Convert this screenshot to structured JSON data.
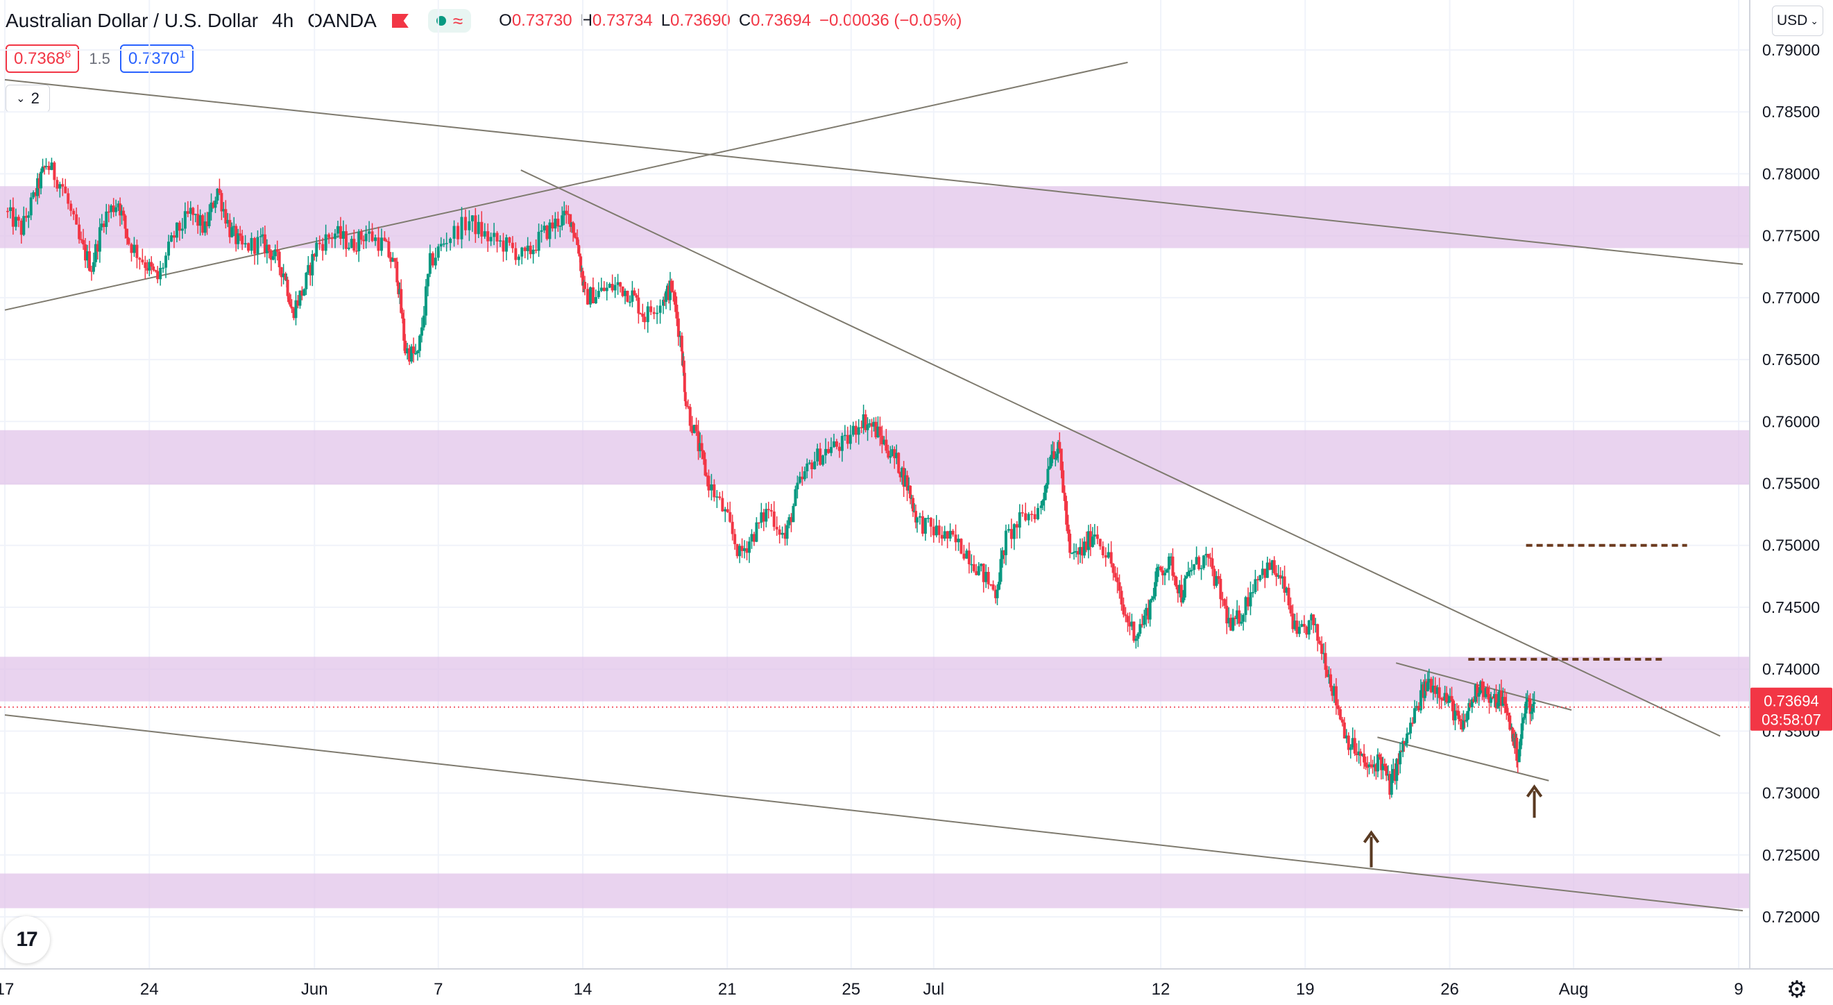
{
  "header": {
    "symbol_name": "Australian Dollar / U.S. Dollar",
    "interval": "4h",
    "broker": "OANDA",
    "ohlc": {
      "o_label": "O",
      "o_value": "0.73730",
      "h_label": "H",
      "h_value": "0.73734",
      "l_label": "L",
      "l_value": "0.73690",
      "c_label": "C",
      "c_value": "0.73694",
      "change": "−0.00036 (−0.05%)"
    }
  },
  "trade": {
    "sell_main": "0.7368",
    "sell_sup": "6",
    "spread": "1.5",
    "buy_main": "0.7370",
    "buy_sup": "1"
  },
  "collapse_count": "2",
  "currency_select": "USD",
  "logo_text": "17",
  "colors": {
    "up": "#089981",
    "down": "#f23645",
    "zone": "#e1c4e9",
    "trendline": "#7e7a6e",
    "level_dash": "#6b3a1e",
    "arrow": "#5a3a22",
    "price_label_bg": "#f23645"
  },
  "chart_data": {
    "type": "candlestick",
    "title": "Australian Dollar / U.S. Dollar, 4h, OANDA",
    "y_ticks": [
      "0.79000",
      "0.78500",
      "0.78000",
      "0.77500",
      "0.77000",
      "0.76500",
      "0.76000",
      "0.75500",
      "0.75000",
      "0.74500",
      "0.74000",
      "0.73500",
      "0.73000",
      "0.72500",
      "0.72000"
    ],
    "ylim": [
      0.7165,
      0.7918
    ],
    "x_ticks": [
      {
        "label": "17",
        "day": 0
      },
      {
        "label": "24",
        "day": 7
      },
      {
        "label": "Jun",
        "day": 15
      },
      {
        "label": "7",
        "day": 21
      },
      {
        "label": "14",
        "day": 28
      },
      {
        "label": "21",
        "day": 35
      },
      {
        "label": "25",
        "day": 41
      },
      {
        "label": "Jul",
        "day": 45
      },
      {
        "label": "12",
        "day": 56
      },
      {
        "label": "19",
        "day": 63
      },
      {
        "label": "26",
        "day": 70
      },
      {
        "label": "Aug",
        "day": 76
      },
      {
        "label": "9",
        "day": 84
      }
    ],
    "x_range_days": [
      0,
      84.2
    ],
    "last_price": "0.73694",
    "countdown": "03:58:07",
    "last_price_value": 0.73694,
    "anchors": [
      [
        0.0,
        0.777
      ],
      [
        0.8,
        0.7755
      ],
      [
        1.5,
        0.7785
      ],
      [
        2.0,
        0.7808
      ],
      [
        2.8,
        0.779
      ],
      [
        3.6,
        0.7745
      ],
      [
        4.2,
        0.7725
      ],
      [
        4.8,
        0.7765
      ],
      [
        5.5,
        0.7778
      ],
      [
        6.0,
        0.7745
      ],
      [
        6.8,
        0.7728
      ],
      [
        7.4,
        0.7715
      ],
      [
        8.2,
        0.775
      ],
      [
        9.0,
        0.7768
      ],
      [
        9.7,
        0.7755
      ],
      [
        10.3,
        0.7788
      ],
      [
        10.9,
        0.7755
      ],
      [
        11.5,
        0.774
      ],
      [
        12.4,
        0.7745
      ],
      [
        13.0,
        0.7735
      ],
      [
        13.6,
        0.7718
      ],
      [
        13.9,
        0.7688
      ],
      [
        14.5,
        0.7708
      ],
      [
        15.1,
        0.7742
      ],
      [
        16.0,
        0.7752
      ],
      [
        16.8,
        0.7742
      ],
      [
        17.5,
        0.7752
      ],
      [
        18.4,
        0.7742
      ],
      [
        19.0,
        0.772
      ],
      [
        19.4,
        0.7658
      ],
      [
        20.0,
        0.7652
      ],
      [
        20.6,
        0.7728
      ],
      [
        21.4,
        0.7748
      ],
      [
        22.5,
        0.7762
      ],
      [
        23.4,
        0.7748
      ],
      [
        24.3,
        0.7742
      ],
      [
        25.2,
        0.7732
      ],
      [
        26.0,
        0.775
      ],
      [
        26.8,
        0.7762
      ],
      [
        27.4,
        0.7765
      ],
      [
        27.8,
        0.774
      ],
      [
        28.1,
        0.77
      ],
      [
        28.9,
        0.7705
      ],
      [
        29.7,
        0.771
      ],
      [
        30.4,
        0.7702
      ],
      [
        31.0,
        0.7685
      ],
      [
        31.9,
        0.77
      ],
      [
        32.3,
        0.7708
      ],
      [
        32.8,
        0.766
      ],
      [
        33.0,
        0.7615
      ],
      [
        33.6,
        0.758
      ],
      [
        34.1,
        0.755
      ],
      [
        34.9,
        0.7525
      ],
      [
        35.6,
        0.7492
      ],
      [
        36.3,
        0.751
      ],
      [
        37.0,
        0.753
      ],
      [
        37.8,
        0.7505
      ],
      [
        38.4,
        0.7545
      ],
      [
        39.1,
        0.7568
      ],
      [
        39.9,
        0.7578
      ],
      [
        40.7,
        0.7582
      ],
      [
        41.5,
        0.7602
      ],
      [
        42.1,
        0.7595
      ],
      [
        42.7,
        0.758
      ],
      [
        43.3,
        0.7565
      ],
      [
        43.8,
        0.7545
      ],
      [
        44.2,
        0.752
      ],
      [
        45.0,
        0.7512
      ],
      [
        45.8,
        0.7505
      ],
      [
        46.6,
        0.7495
      ],
      [
        47.3,
        0.7478
      ],
      [
        48.0,
        0.7462
      ],
      [
        48.5,
        0.7505
      ],
      [
        49.3,
        0.7522
      ],
      [
        50.2,
        0.753
      ],
      [
        50.7,
        0.7578
      ],
      [
        51.1,
        0.7575
      ],
      [
        51.6,
        0.749
      ],
      [
        52.2,
        0.7495
      ],
      [
        52.8,
        0.7512
      ],
      [
        53.6,
        0.7485
      ],
      [
        54.2,
        0.7445
      ],
      [
        54.8,
        0.7428
      ],
      [
        55.4,
        0.7448
      ],
      [
        55.9,
        0.748
      ],
      [
        56.5,
        0.7485
      ],
      [
        57.0,
        0.746
      ],
      [
        57.5,
        0.7482
      ],
      [
        58.2,
        0.749
      ],
      [
        58.8,
        0.7465
      ],
      [
        59.4,
        0.7432
      ],
      [
        60.0,
        0.7448
      ],
      [
        60.7,
        0.7478
      ],
      [
        61.4,
        0.7482
      ],
      [
        62.0,
        0.7465
      ],
      [
        62.6,
        0.7425
      ],
      [
        63.3,
        0.7438
      ],
      [
        63.9,
        0.7412
      ],
      [
        64.4,
        0.738
      ],
      [
        65.0,
        0.7345
      ],
      [
        65.6,
        0.733
      ],
      [
        66.1,
        0.7318
      ],
      [
        66.6,
        0.7328
      ],
      [
        67.1,
        0.7305
      ],
      [
        67.6,
        0.733
      ],
      [
        68.0,
        0.7348
      ],
      [
        68.6,
        0.7378
      ],
      [
        69.0,
        0.739
      ],
      [
        69.6,
        0.7382
      ],
      [
        70.1,
        0.737
      ],
      [
        70.6,
        0.735
      ],
      [
        71.0,
        0.7372
      ],
      [
        71.5,
        0.739
      ],
      [
        72.0,
        0.7372
      ],
      [
        72.5,
        0.7378
      ],
      [
        73.0,
        0.735
      ],
      [
        73.3,
        0.733
      ],
      [
        73.7,
        0.7373
      ],
      [
        74.1,
        0.7369
      ]
    ],
    "zones": [
      {
        "top": 0.779,
        "bottom": 0.774
      },
      {
        "top": 0.7593,
        "bottom": 0.7549
      },
      {
        "top": 0.741,
        "bottom": 0.7374
      },
      {
        "top": 0.7235,
        "bottom": 0.7207
      }
    ],
    "trendlines": [
      {
        "x1": 0.0,
        "y1": 0.7876,
        "x2": 84.2,
        "y2": 0.7727
      },
      {
        "x1": 0.0,
        "y1": 0.769,
        "x2": 54.4,
        "y2": 0.789
      },
      {
        "x1": 25.0,
        "y1": 0.7803,
        "x2": 83.1,
        "y2": 0.7346
      },
      {
        "x1": 0.0,
        "y1": 0.7363,
        "x2": 84.2,
        "y2": 0.7205
      },
      {
        "x1": 67.4,
        "y1": 0.7405,
        "x2": 75.9,
        "y2": 0.7367
      },
      {
        "x1": 66.5,
        "y1": 0.7345,
        "x2": 74.8,
        "y2": 0.731
      }
    ],
    "levels": [
      {
        "x1": 73.7,
        "x2": 81.5,
        "y": 0.75
      },
      {
        "x1": 70.9,
        "x2": 80.3,
        "y": 0.7408
      }
    ],
    "arrows": [
      {
        "x": 66.2,
        "y_tip": 0.7268,
        "y_tail": 0.724
      },
      {
        "x": 74.1,
        "y_tip": 0.7305,
        "y_tail": 0.728
      }
    ]
  }
}
